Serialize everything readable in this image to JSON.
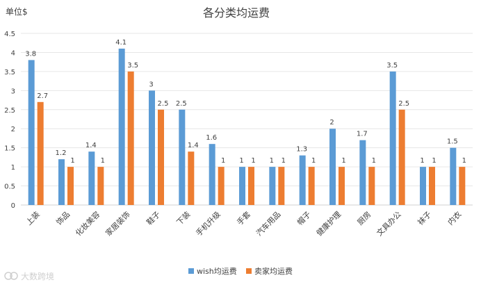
{
  "chart_data": {
    "type": "bar",
    "title": "各分类均运费",
    "ylabel": "单位$",
    "ylim": [
      0,
      4.5
    ],
    "yticks": [
      "0",
      "0.5",
      "1",
      "1.5",
      "2",
      "2.5",
      "3",
      "3.5",
      "4",
      "4.5"
    ],
    "grid": true,
    "legend_position": "bottom",
    "categories": [
      "上装",
      "饰品",
      "化妆美容",
      "家居装饰",
      "鞋子",
      "下装",
      "手机升级",
      "手套",
      "汽车用品",
      "帽子",
      "健康护理",
      "厨房",
      "文具办公",
      "袜子",
      "内衣"
    ],
    "series": [
      {
        "name": "wish均运费",
        "color": "#5b9bd5",
        "values": [
          3.8,
          1.2,
          1.4,
          4.1,
          3,
          2.5,
          1.6,
          1,
          1,
          1.3,
          2,
          1.7,
          3.5,
          1,
          1.5
        ]
      },
      {
        "name": "卖家均运费",
        "color": "#ed7d31",
        "values": [
          2.7,
          1,
          1,
          3.5,
          2.5,
          1.4,
          1,
          1,
          1,
          1,
          1,
          1,
          2.5,
          1,
          1
        ]
      }
    ]
  },
  "watermark": "大数跨境"
}
